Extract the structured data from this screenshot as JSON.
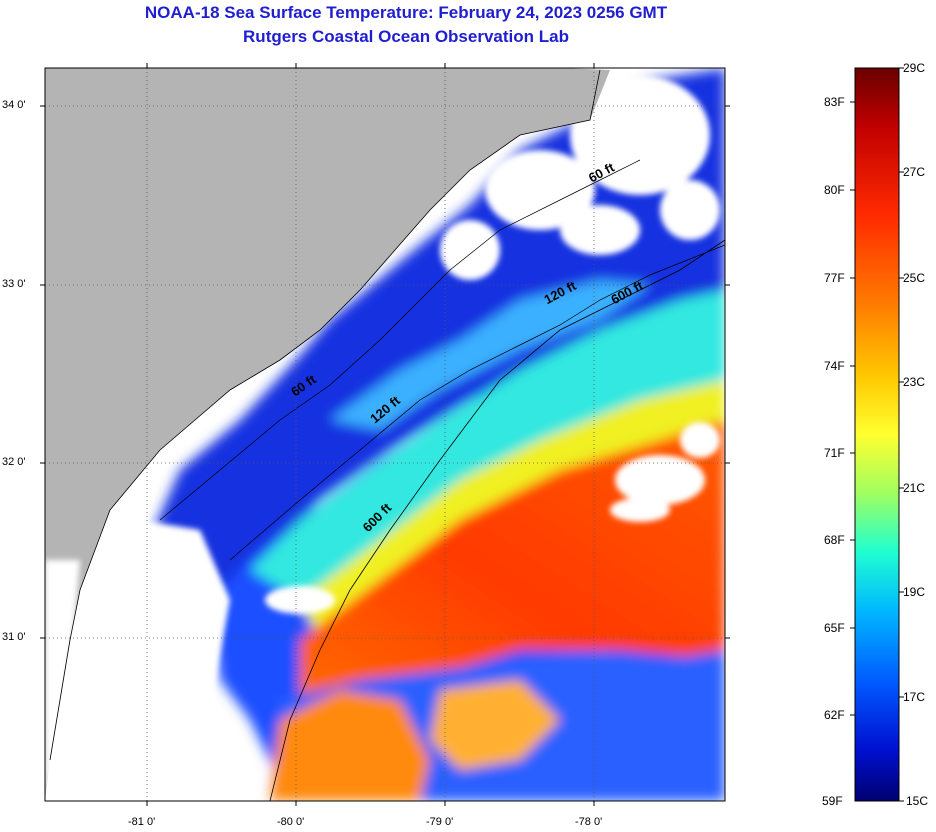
{
  "header": {
    "title": "NOAA-18 Sea Surface Temperature:  February 24, 2023 0256 GMT",
    "subtitle": "Rutgers Coastal Ocean Observation Lab"
  },
  "map": {
    "lat_labels": [
      "34 0'",
      "33 0'",
      "32 0'",
      "31 0'"
    ],
    "lon_labels": [
      "-81 0'",
      "-80 0'",
      "-79 0'",
      "-78 0'"
    ],
    "land_color": "#b4b4b4",
    "cloud_color": "#ffffff",
    "isobaths": [
      {
        "label": "60 ft"
      },
      {
        "label": "120 ft"
      },
      {
        "label": "600 ft"
      }
    ]
  },
  "colorbar": {
    "fahrenheit_labels": [
      "83F",
      "80F",
      "77F",
      "74F",
      "71F",
      "68F",
      "65F",
      "62F",
      "59F"
    ],
    "celsius_labels": [
      "29C",
      "27C",
      "25C",
      "23C",
      "21C",
      "19C",
      "17C",
      "15C"
    ],
    "colors": [
      "#7a0000",
      "#c00000",
      "#ff2000",
      "#ff7000",
      "#ffc000",
      "#ffff20",
      "#a0ff50",
      "#30ffc0",
      "#00c0ff",
      "#0060ff",
      "#0010d0",
      "#000080"
    ]
  }
}
